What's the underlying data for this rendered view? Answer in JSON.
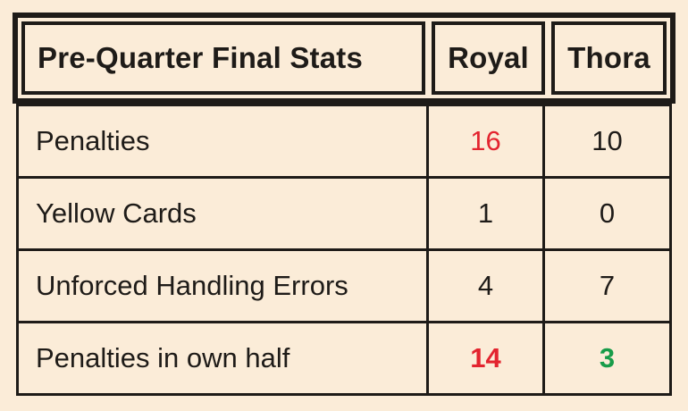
{
  "colors": {
    "background": "#fbecd8",
    "ink": "#1e1b18",
    "red": "#e3242f",
    "green": "#189c49"
  },
  "header": {
    "title": "Pre-Quarter Final Stats",
    "col_royal": "Royal",
    "col_thora": "Thora"
  },
  "rows": [
    {
      "label": "Penalties",
      "royal": "16",
      "royal_color": "#e3242f",
      "royal_weight": "400",
      "thora": "10",
      "thora_color": "#1e1b18",
      "thora_weight": "400"
    },
    {
      "label": "Yellow Cards",
      "royal": "1",
      "royal_color": "#1e1b18",
      "royal_weight": "400",
      "thora": "0",
      "thora_color": "#1e1b18",
      "thora_weight": "400"
    },
    {
      "label": "Unforced Handling Errors",
      "royal": "4",
      "royal_color": "#1e1b18",
      "royal_weight": "400",
      "thora": "7",
      "thora_color": "#1e1b18",
      "thora_weight": "400"
    },
    {
      "label": "Penalties in own half",
      "royal": "14",
      "royal_color": "#e3242f",
      "royal_weight": "700",
      "thora": "3",
      "thora_color": "#189c49",
      "thora_weight": "700"
    }
  ]
}
